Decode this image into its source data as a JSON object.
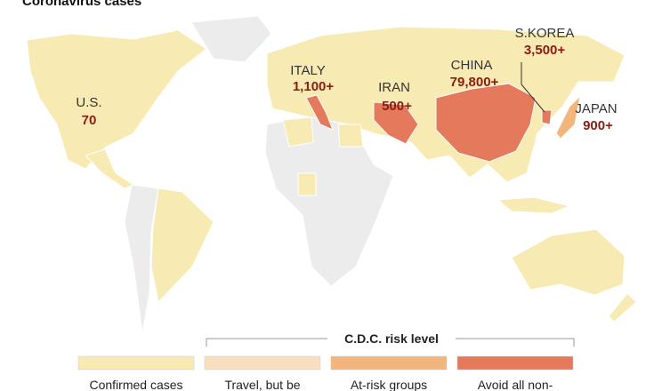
{
  "header": {
    "title": "Coronavirus cases"
  },
  "map": {
    "annotations": [
      {
        "place": "U.S.",
        "count": "70"
      },
      {
        "place": "ITALY",
        "count": "1,100+"
      },
      {
        "place": "IRAN",
        "count": "500+"
      },
      {
        "place": "CHINA",
        "count": "79,800+"
      },
      {
        "place": "S.KOREA",
        "count": "3,500+"
      },
      {
        "place": "JAPAN",
        "count": "900+"
      }
    ]
  },
  "legend": {
    "title": "C.D.C. risk level",
    "items": [
      {
        "label": "Confirmed cases",
        "color": "#f8eab3"
      },
      {
        "label": "Travel, but be",
        "color": "#f8dfbd"
      },
      {
        "label": "At-risk groups",
        "color": "#f2b67c"
      },
      {
        "label": "Avoid all non-",
        "color": "#e4795b"
      }
    ]
  }
}
